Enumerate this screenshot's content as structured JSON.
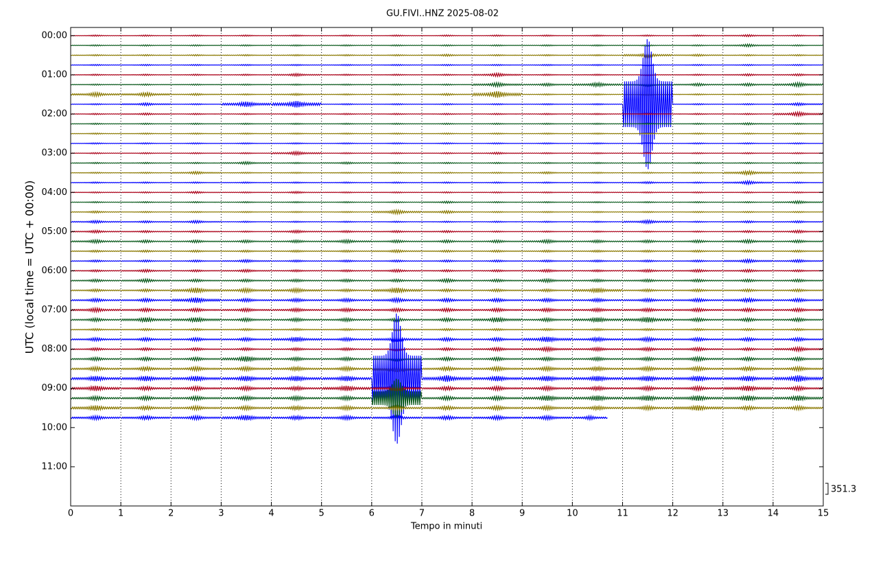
{
  "chart_data": {
    "type": "helicorder",
    "title": "GU.FIVI..HNZ 2025-08-02",
    "xlabel": "Tempo in minuti",
    "ylabel": "UTC (local time = UTC + 00:00)",
    "scale_label": "351.3",
    "xlim": [
      0,
      15
    ],
    "xticks": [
      0,
      1,
      2,
      3,
      4,
      5,
      6,
      7,
      8,
      9,
      10,
      11,
      12,
      13,
      14,
      15
    ],
    "ylim": [
      -12.5,
      720
    ],
    "y_inverted": true,
    "yticks": [
      {
        "value": 0,
        "label": "00:00"
      },
      {
        "value": 60,
        "label": "01:00"
      },
      {
        "value": 120,
        "label": "02:00"
      },
      {
        "value": 180,
        "label": "03:00"
      },
      {
        "value": 240,
        "label": "04:00"
      },
      {
        "value": 300,
        "label": "05:00"
      },
      {
        "value": 360,
        "label": "06:00"
      },
      {
        "value": 420,
        "label": "07:00"
      },
      {
        "value": 480,
        "label": "08:00"
      },
      {
        "value": 540,
        "label": "09:00"
      },
      {
        "value": 600,
        "label": "10:00"
      },
      {
        "value": 660,
        "label": "11:00"
      }
    ],
    "grid": true,
    "traces": [
      {
        "y": 0,
        "color": "#aa0018",
        "values": [
          1,
          1,
          1,
          1,
          1,
          1,
          1,
          1,
          1,
          1,
          1,
          1,
          1,
          1.5,
          1
        ]
      },
      {
        "y": 15,
        "color": "#0b5a1d",
        "values": [
          1,
          1,
          1,
          1,
          1,
          1,
          1,
          1,
          1,
          1,
          1,
          1,
          1,
          2,
          1
        ]
      },
      {
        "y": 30,
        "color": "#8a7800",
        "values": [
          1,
          1,
          1,
          1,
          1,
          1,
          1,
          1.5,
          1,
          1,
          1,
          3,
          1.5,
          1,
          1
        ]
      },
      {
        "y": 45,
        "color": "#0000ff",
        "values": [
          1,
          1,
          1,
          1,
          1,
          1,
          1,
          1,
          1,
          1,
          1,
          1,
          1,
          1,
          1
        ]
      },
      {
        "y": 60,
        "color": "#aa0018",
        "values": [
          1,
          1,
          1,
          1,
          2,
          1,
          1,
          1,
          2.5,
          1,
          1,
          1,
          1,
          1.5,
          1.5
        ]
      },
      {
        "y": 75,
        "color": "#0b5a1d",
        "values": [
          1,
          1,
          1,
          1,
          1,
          1,
          1,
          1,
          3,
          2,
          3,
          2,
          2,
          2,
          3
        ]
      },
      {
        "y": 90,
        "color": "#8a7800",
        "values": [
          3,
          3,
          1.5,
          1,
          1.5,
          1,
          1,
          1.5,
          5,
          1,
          1,
          1,
          1,
          1,
          1
        ]
      },
      {
        "y": 105,
        "color": "#0000ff",
        "values": [
          1,
          2,
          1,
          4,
          5,
          1,
          1,
          1,
          1,
          1,
          1,
          100,
          1,
          1,
          2
        ]
      },
      {
        "y": 120,
        "color": "#aa0018",
        "values": [
          1,
          1.5,
          1,
          1,
          1,
          1,
          1,
          1,
          1,
          1,
          1,
          1,
          1,
          1,
          3
        ]
      },
      {
        "y": 135,
        "color": "#0b5a1d",
        "values": [
          1,
          1,
          1,
          1,
          1,
          1,
          1,
          1,
          1,
          1,
          1,
          1,
          1,
          1.5,
          1
        ]
      },
      {
        "y": 150,
        "color": "#8a7800",
        "values": [
          1,
          1,
          1,
          1,
          1,
          1,
          1,
          1,
          1,
          1,
          1,
          1,
          1,
          1,
          1
        ]
      },
      {
        "y": 165,
        "color": "#0000ff",
        "values": [
          1,
          1,
          1,
          1,
          1,
          1,
          1,
          1,
          1,
          1,
          1,
          1,
          1,
          1,
          1
        ]
      },
      {
        "y": 180,
        "color": "#aa0018",
        "values": [
          1,
          1,
          1,
          1,
          2.5,
          1,
          1,
          1,
          1.5,
          1,
          1,
          1,
          1,
          1,
          1
        ]
      },
      {
        "y": 195,
        "color": "#0b5a1d",
        "values": [
          1,
          1,
          1,
          2,
          1,
          1.5,
          1,
          1,
          1,
          1,
          1,
          1,
          1,
          1,
          1
        ]
      },
      {
        "y": 210,
        "color": "#8a7800",
        "values": [
          1,
          1,
          2,
          1,
          1,
          1,
          1,
          1,
          1,
          1.5,
          1,
          1,
          1,
          3,
          1
        ]
      },
      {
        "y": 225,
        "color": "#0000ff",
        "values": [
          1,
          1,
          1,
          1,
          1,
          1,
          1,
          1,
          1,
          1,
          1,
          1.5,
          1,
          2.5,
          1
        ]
      },
      {
        "y": 240,
        "color": "#aa0018",
        "values": [
          1,
          1,
          1.5,
          1,
          1.5,
          1,
          1,
          1,
          1,
          1,
          1,
          1,
          1,
          1,
          1
        ]
      },
      {
        "y": 255,
        "color": "#0b5a1d",
        "values": [
          1,
          1,
          1,
          1,
          1,
          1,
          1,
          1.5,
          1,
          1,
          1,
          1,
          1,
          1,
          2
        ]
      },
      {
        "y": 270,
        "color": "#8a7800",
        "values": [
          1.5,
          1,
          1,
          1,
          1,
          1,
          3,
          2,
          1,
          1,
          1,
          1,
          1,
          1,
          1
        ]
      },
      {
        "y": 285,
        "color": "#0000ff",
        "values": [
          2,
          1.5,
          2,
          1,
          1,
          1,
          1,
          1,
          1,
          1,
          1,
          2.5,
          1,
          1.5,
          1.5
        ]
      },
      {
        "y": 300,
        "color": "#aa0018",
        "values": [
          2,
          1.5,
          1.5,
          1,
          2,
          1.5,
          1.5,
          1.5,
          1,
          1,
          1,
          1,
          1,
          1.5,
          2
        ]
      },
      {
        "y": 315,
        "color": "#0b5a1d",
        "values": [
          2.5,
          2,
          2,
          2,
          2,
          2.5,
          2,
          2,
          2,
          2.5,
          2,
          2,
          2,
          2.5,
          2
        ]
      },
      {
        "y": 330,
        "color": "#8a7800",
        "values": [
          1.5,
          1.5,
          1.5,
          1.5,
          1.5,
          1.5,
          2,
          1.5,
          1.5,
          1.5,
          1.5,
          1.5,
          1.5,
          1.5,
          1.5
        ]
      },
      {
        "y": 345,
        "color": "#0000ff",
        "values": [
          1.5,
          1.5,
          1.5,
          2,
          1.5,
          1.5,
          1.5,
          1.5,
          1.5,
          1.5,
          1.5,
          1.5,
          1.5,
          2.5,
          2
        ]
      },
      {
        "y": 360,
        "color": "#aa0018",
        "values": [
          1.5,
          2,
          1.5,
          2,
          1.5,
          1.5,
          2,
          1.5,
          1.5,
          2,
          1.5,
          2,
          2,
          2,
          1.5
        ]
      },
      {
        "y": 375,
        "color": "#0b5a1d",
        "values": [
          2,
          2.5,
          2,
          2,
          2,
          2,
          2,
          2.5,
          2,
          2.5,
          2,
          2,
          2,
          2,
          2
        ]
      },
      {
        "y": 390,
        "color": "#8a7800",
        "values": [
          2,
          2,
          4,
          3,
          3,
          2,
          4,
          2,
          2,
          2,
          3.5,
          2,
          2,
          2,
          2
        ]
      },
      {
        "y": 405,
        "color": "#0000ff",
        "values": [
          2.5,
          2.5,
          4,
          2.5,
          2.5,
          2.5,
          3,
          2.5,
          2.5,
          2.5,
          2.5,
          2.5,
          2.5,
          3,
          2.5
        ]
      },
      {
        "y": 420,
        "color": "#aa0018",
        "values": [
          3,
          2.5,
          2.5,
          2.5,
          2.5,
          2.5,
          2.5,
          2.5,
          2.5,
          2.5,
          2.5,
          2.5,
          2.5,
          2.5,
          2.5
        ]
      },
      {
        "y": 435,
        "color": "#0b5a1d",
        "values": [
          2.5,
          3.5,
          3.5,
          2.5,
          2.5,
          2.5,
          2.5,
          2.5,
          3.5,
          2.5,
          3.5,
          4,
          2.5,
          2.5,
          2.5
        ]
      },
      {
        "y": 450,
        "color": "#8a7800",
        "values": [
          1.5,
          1.5,
          1.5,
          1.5,
          1.5,
          1.5,
          1.5,
          1.5,
          1.5,
          1.5,
          1.5,
          1.5,
          1.5,
          1.5,
          1.5
        ]
      },
      {
        "y": 465,
        "color": "#0000ff",
        "values": [
          2.5,
          2.5,
          2.5,
          2.5,
          3.5,
          2.5,
          3.5,
          2.5,
          2.5,
          4,
          3,
          3,
          2.5,
          2.5,
          2.5
        ]
      },
      {
        "y": 480,
        "color": "#aa0018",
        "values": [
          2,
          2,
          2,
          2,
          2,
          2,
          2,
          2,
          2.5,
          3,
          2.5,
          2.5,
          2.5,
          2,
          3
        ]
      },
      {
        "y": 495,
        "color": "#0b5a1d",
        "values": [
          2.5,
          2.5,
          2.5,
          4,
          2.5,
          2.5,
          2.5,
          2.5,
          2.5,
          2.5,
          2.5,
          2.5,
          3,
          2.5,
          2.5
        ]
      },
      {
        "y": 510,
        "color": "#8a7800",
        "values": [
          3,
          3,
          3,
          3,
          3,
          3,
          5,
          3,
          3,
          3,
          3,
          3,
          3,
          3,
          3
        ]
      },
      {
        "y": 525,
        "color": "#0000ff",
        "values": [
          4,
          4,
          4,
          4,
          4,
          4,
          100,
          5,
          4,
          4,
          4,
          4,
          4,
          4,
          5
        ]
      },
      {
        "y": 540,
        "color": "#aa0018",
        "values": [
          4,
          3,
          3,
          3,
          3,
          4,
          4,
          3,
          3,
          3,
          3,
          3,
          3,
          4,
          3
        ]
      },
      {
        "y": 555,
        "color": "#0b5a1d",
        "values": [
          3,
          3,
          3,
          3,
          3,
          3,
          30,
          3,
          3,
          4,
          4,
          4,
          4,
          4,
          4
        ]
      },
      {
        "y": 570,
        "color": "#8a7800",
        "values": [
          4,
          3,
          3,
          3,
          3,
          3,
          3,
          3,
          3,
          3,
          3,
          3,
          4,
          3,
          3
        ]
      },
      {
        "y": 585,
        "color": "#0000ff",
        "end": 10.7,
        "values": [
          3,
          3,
          3,
          4,
          3,
          3,
          3,
          3,
          3,
          3,
          3
        ]
      }
    ]
  }
}
